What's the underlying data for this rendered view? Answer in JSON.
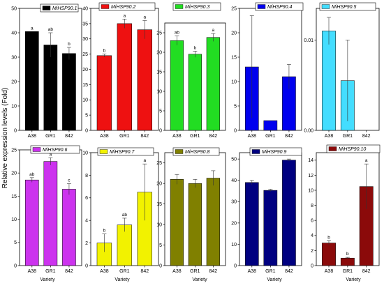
{
  "figure": {
    "ylabel": "Relative expression levels (Fold)",
    "xlabel": "Variety"
  },
  "chart_data": [
    {
      "type": "bar",
      "legend": "MiHSP90.1",
      "color": "#000000",
      "categories": [
        "A38",
        "GR1",
        "842"
      ],
      "values": [
        40.5,
        35.0,
        31.5
      ],
      "errors": [
        0,
        5,
        2.5
      ],
      "letters": [
        "a",
        "ab",
        "b"
      ],
      "ylim": [
        0,
        50
      ],
      "yticks": [
        0,
        10,
        20,
        30,
        40,
        50
      ]
    },
    {
      "type": "bar",
      "legend": "MiHSP90.2",
      "color": "#ee1111",
      "categories": [
        "A38",
        "GR1",
        "842"
      ],
      "values": [
        24.5,
        35.0,
        33.0
      ],
      "errors": [
        0.5,
        1.5,
        3.0
      ],
      "letters": [
        "b",
        "a",
        "a"
      ],
      "ylim": [
        0,
        40
      ],
      "yticks": [
        0,
        5,
        10,
        15,
        20,
        25,
        30,
        35,
        40
      ]
    },
    {
      "type": "bar",
      "legend": "MiHSP90.3",
      "color": "#22dd22",
      "categories": [
        "A38",
        "GR1",
        "842"
      ],
      "values": [
        23.0,
        19.5,
        23.8
      ],
      "errors": [
        1.2,
        0.8,
        1.0
      ],
      "letters": [
        "ab",
        "b",
        "a"
      ],
      "ylim": [
        0,
        27.5
      ],
      "yticks": [
        0,
        5,
        10,
        15,
        20,
        25
      ]
    },
    {
      "type": "bar",
      "legend": "MiHSP90.4",
      "color": "#0000ee",
      "categories": [
        "A38",
        "GR1",
        "842"
      ],
      "values": [
        13.0,
        2.0,
        11.0
      ],
      "errors": [
        10.5,
        0,
        2.5
      ],
      "letters": [
        "",
        "",
        ""
      ],
      "ylim": [
        0,
        25
      ],
      "yticks": [
        0,
        5,
        10,
        15,
        20,
        25
      ]
    },
    {
      "type": "bar",
      "legend": "MiHSP90.5",
      "color": "#44ddff",
      "categories": [
        "A38",
        "GR1",
        "842"
      ],
      "values": [
        0.011,
        0.0055,
        0.0
      ],
      "errors": [
        0.0015,
        0.0045,
        0
      ],
      "letters": [
        "",
        "",
        ""
      ],
      "ylim": [
        0,
        0.0135
      ],
      "yticks": [
        0.0,
        0.01
      ],
      "ytick_labels": [
        "0.00",
        "0.01"
      ]
    },
    {
      "type": "bar",
      "legend": "MiHSP90.6",
      "color": "#cc33ee",
      "categories": [
        "A38",
        "GR1",
        "842"
      ],
      "values": [
        18.5,
        22.5,
        16.5
      ],
      "errors": [
        0.5,
        0.8,
        1.2
      ],
      "letters": [
        "ab",
        "a",
        "c"
      ],
      "ylim": [
        0,
        25
      ],
      "yticks": [
        0,
        5,
        10,
        15,
        20,
        25
      ]
    },
    {
      "type": "bar",
      "legend": "MiHSP90.7",
      "color": "#f2f200",
      "categories": [
        "A38",
        "GR1",
        "842"
      ],
      "values": [
        2.0,
        3.6,
        6.5
      ],
      "errors": [
        0.8,
        0.6,
        2.5
      ],
      "letters": [
        "b",
        "ab",
        "a"
      ],
      "ylim": [
        0,
        10
      ],
      "yticks": [
        0,
        2,
        4,
        6,
        8,
        10
      ]
    },
    {
      "type": "bar",
      "legend": "MiHSP90.8",
      "color": "#808000",
      "categories": [
        "A38",
        "GR1",
        "842"
      ],
      "values": [
        21.0,
        20.0,
        21.3
      ],
      "errors": [
        1.2,
        1.0,
        1.8
      ],
      "letters": [
        "",
        "",
        ""
      ],
      "ylim": [
        0,
        27.5
      ],
      "yticks": [
        0,
        5,
        10,
        15,
        20,
        25
      ]
    },
    {
      "type": "bar",
      "legend": "MiHSP90.9",
      "color": "#000080",
      "categories": [
        "A38",
        "GR1",
        "842"
      ],
      "values": [
        39.0,
        35.3,
        49.5
      ],
      "errors": [
        1.0,
        0.5,
        0.5
      ],
      "letters": [
        "",
        "",
        ""
      ],
      "ylim": [
        0,
        53
      ],
      "yticks": [
        0,
        10,
        20,
        30,
        40,
        50
      ]
    },
    {
      "type": "bar",
      "legend": "MiHSP90.10",
      "color": "#8b0a0a",
      "categories": [
        "A38",
        "GR1",
        "842"
      ],
      "values": [
        3.0,
        1.0,
        10.5
      ],
      "errors": [
        0.3,
        0.1,
        3.0
      ],
      "letters": [
        "b",
        "b",
        "a"
      ],
      "ylim": [
        0,
        15
      ],
      "yticks": [
        0,
        2,
        4,
        6,
        8,
        10,
        12,
        14
      ]
    }
  ]
}
